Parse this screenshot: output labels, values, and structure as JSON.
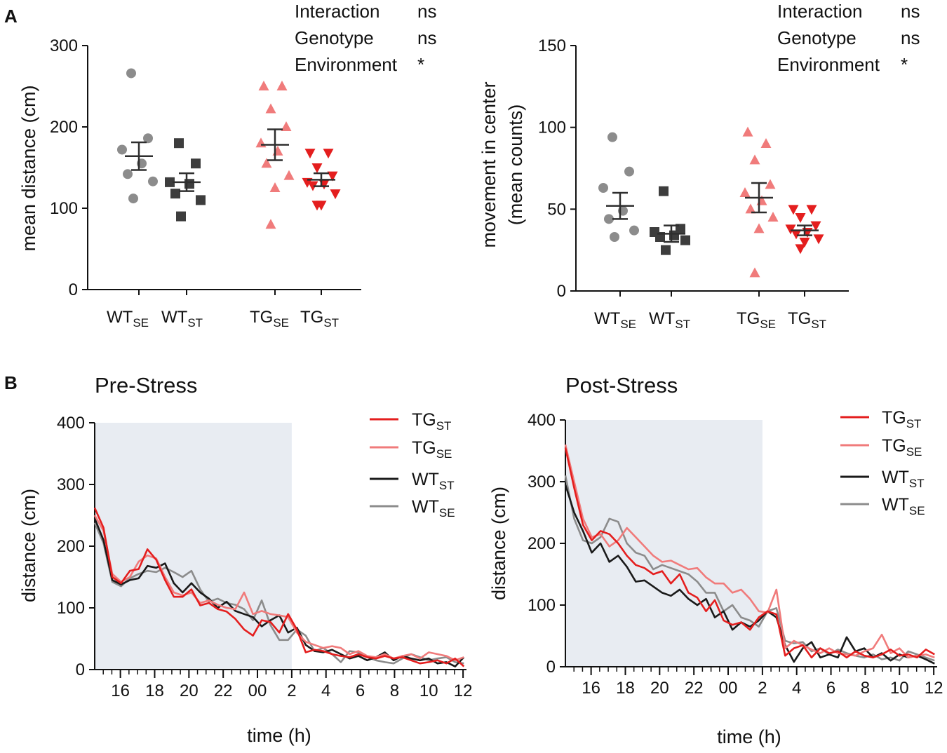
{
  "panel_labels": {
    "a": "A",
    "b": "B"
  },
  "colors": {
    "wt_se": "#8c8c8c",
    "wt_st": "#3d3d3d",
    "tg_se": "#f07b7b",
    "tg_st": "#e41e1e",
    "shade": "#e8ecf2",
    "sem": "#2e2e2e"
  },
  "group_labels": [
    {
      "main": "WT",
      "sub": "SE"
    },
    {
      "main": "WT",
      "sub": "ST"
    },
    {
      "main": "TG",
      "sub": "SE"
    },
    {
      "main": "TG",
      "sub": "ST"
    }
  ],
  "stats_left": [
    {
      "label": "Interaction",
      "value": "ns"
    },
    {
      "label": "Genotype",
      "value": "ns"
    },
    {
      "label": "Environment",
      "value": "*"
    }
  ],
  "stats_right": [
    {
      "label": "Interaction",
      "value": "ns"
    },
    {
      "label": "Genotype",
      "value": "ns"
    },
    {
      "label": "Environment",
      "value": "*"
    }
  ],
  "chart_data": [
    {
      "type": "scatter",
      "panel": "A-left",
      "ylabel": "mean distance (cm)",
      "ylim": [
        0,
        300
      ],
      "yticks": [
        0,
        100,
        200,
        300
      ],
      "groups": [
        {
          "name": "WT SE",
          "marker": "circle",
          "values": [
            266,
            186,
            172,
            155,
            142,
            133,
            112
          ],
          "mean": 164,
          "sem": 17
        },
        {
          "name": "WT ST",
          "marker": "square",
          "values": [
            180,
            155,
            132,
            130,
            118,
            110,
            90
          ],
          "mean": 132,
          "sem": 11
        },
        {
          "name": "TG SE",
          "marker": "triangle-up",
          "values": [
            250,
            250,
            222,
            200,
            180,
            170,
            155,
            140,
            125,
            80
          ],
          "mean": 178,
          "sem": 19
        },
        {
          "name": "TG ST",
          "marker": "triangle-down",
          "values": [
            168,
            168,
            150,
            140,
            132,
            130,
            128,
            118,
            104,
            104
          ],
          "mean": 135,
          "sem": 8
        }
      ]
    },
    {
      "type": "scatter",
      "panel": "A-right",
      "ylabel": "movement in center",
      "ylabel2": "(mean counts)",
      "ylim": [
        0,
        150
      ],
      "yticks": [
        0,
        50,
        100,
        150
      ],
      "groups": [
        {
          "name": "WT SE",
          "marker": "circle",
          "values": [
            94,
            73,
            63,
            49,
            44,
            37,
            33
          ],
          "mean": 52,
          "sem": 8
        },
        {
          "name": "WT ST",
          "marker": "square",
          "values": [
            61,
            38,
            36,
            34,
            33,
            31,
            25
          ],
          "mean": 35,
          "sem": 5
        },
        {
          "name": "TG SE",
          "marker": "triangle-up",
          "values": [
            97,
            90,
            80,
            65,
            60,
            55,
            50,
            45,
            38,
            11
          ],
          "mean": 57,
          "sem": 9
        },
        {
          "name": "TG ST",
          "marker": "triangle-down",
          "values": [
            50,
            50,
            45,
            40,
            38,
            36,
            35,
            32,
            30,
            26
          ],
          "mean": 37,
          "sem": 3
        }
      ]
    },
    {
      "type": "line",
      "panel": "B-left",
      "title": "Pre-Stress",
      "xlabel": "time (h)",
      "ylabel": "distance (cm)",
      "ylim": [
        0,
        400
      ],
      "yticks": [
        0,
        100,
        200,
        300,
        400
      ],
      "xlim": [
        14.5,
        36.2
      ],
      "xticks": [
        16,
        18,
        20,
        22,
        24,
        26,
        28,
        30,
        32,
        34,
        36
      ],
      "xtick_labels": [
        "16",
        "18",
        "20",
        "22",
        "00",
        "2",
        "4",
        "6",
        "8",
        "10",
        "12"
      ],
      "dark_phase": [
        14.5,
        26
      ],
      "series": [
        {
          "name": "TG ST",
          "label_main": "TG",
          "label_sub": "ST",
          "values": [
            262,
            230,
            150,
            140,
            160,
            163,
            195,
            178,
            145,
            118,
            118,
            130,
            104,
            108,
            98,
            94,
            82,
            65,
            55,
            80,
            77,
            60,
            90,
            65,
            28,
            32,
            30,
            25,
            22,
            20,
            25,
            20,
            18,
            22,
            18,
            20,
            15,
            10,
            12,
            15,
            10,
            18,
            5
          ]
        },
        {
          "name": "TG SE",
          "label_main": "TG",
          "label_sub": "SE",
          "values": [
            250,
            225,
            155,
            142,
            150,
            175,
            185,
            180,
            150,
            125,
            120,
            125,
            108,
            112,
            105,
            100,
            98,
            125,
            90,
            95,
            90,
            88,
            85,
            60,
            45,
            40,
            35,
            38,
            35,
            25,
            30,
            22,
            20,
            25,
            18,
            22,
            25,
            18,
            28,
            25,
            22,
            15,
            20
          ]
        },
        {
          "name": "WT ST",
          "label_main": "WT",
          "label_sub": "ST",
          "values": [
            245,
            210,
            145,
            138,
            145,
            148,
            168,
            165,
            172,
            140,
            125,
            140,
            125,
            115,
            100,
            110,
            95,
            90,
            85,
            70,
            80,
            88,
            60,
            68,
            40,
            30,
            28,
            32,
            25,
            18,
            22,
            15,
            20,
            28,
            15,
            22,
            18,
            15,
            18,
            10,
            12,
            5,
            20
          ]
        },
        {
          "name": "WT SE",
          "label_main": "WT",
          "label_sub": "SE",
          "values": [
            238,
            205,
            142,
            135,
            148,
            155,
            160,
            158,
            165,
            158,
            150,
            160,
            130,
            110,
            115,
            108,
            105,
            98,
            80,
            112,
            72,
            48,
            48,
            65,
            55,
            30,
            35,
            25,
            12,
            30,
            28,
            20,
            15,
            12,
            10,
            18,
            25,
            20,
            15,
            18,
            20,
            12,
            10
          ]
        }
      ]
    },
    {
      "type": "line",
      "panel": "B-right",
      "title": "Post-Stress",
      "xlabel": "time (h)",
      "ylabel": "distance (cm)",
      "ylim": [
        0,
        400
      ],
      "yticks": [
        0,
        100,
        200,
        300,
        400
      ],
      "xlim": [
        14.5,
        36.2
      ],
      "xticks": [
        16,
        18,
        20,
        22,
        24,
        26,
        28,
        30,
        32,
        34,
        36
      ],
      "xtick_labels": [
        "16",
        "18",
        "20",
        "22",
        "00",
        "2",
        "4",
        "6",
        "8",
        "10",
        "12"
      ],
      "dark_phase": [
        14.5,
        26
      ],
      "series": [
        {
          "name": "TG ST",
          "label_main": "TG",
          "label_sub": "ST",
          "values": [
            355,
            290,
            230,
            205,
            220,
            215,
            200,
            180,
            165,
            160,
            150,
            155,
            135,
            150,
            120,
            112,
            90,
            108,
            75,
            68,
            72,
            60,
            80,
            90,
            85,
            18,
            30,
            35,
            15,
            30,
            22,
            25,
            15,
            25,
            18,
            15,
            20,
            28,
            18,
            20,
            15,
            28,
            20
          ]
        },
        {
          "name": "TG SE",
          "label_main": "TG",
          "label_sub": "SE",
          "values": [
            360,
            300,
            240,
            210,
            215,
            195,
            205,
            225,
            210,
            195,
            180,
            170,
            172,
            165,
            158,
            160,
            145,
            135,
            135,
            120,
            125,
            110,
            90,
            88,
            125,
            30,
            42,
            35,
            28,
            22,
            30,
            22,
            20,
            18,
            25,
            30,
            52,
            22,
            30,
            15,
            18,
            20,
            15
          ]
        },
        {
          "name": "WT ST",
          "label_main": "WT",
          "label_sub": "ST",
          "values": [
            295,
            250,
            220,
            185,
            200,
            170,
            180,
            162,
            138,
            140,
            130,
            120,
            115,
            125,
            110,
            100,
            110,
            80,
            90,
            60,
            72,
            65,
            75,
            90,
            80,
            35,
            8,
            30,
            40,
            15,
            20,
            15,
            48,
            25,
            30,
            15,
            22,
            10,
            20,
            15,
            18,
            12,
            5
          ]
        },
        {
          "name": "WT SE",
          "label_main": "WT",
          "label_sub": "SE",
          "values": [
            310,
            240,
            205,
            200,
            210,
            240,
            235,
            200,
            185,
            180,
            158,
            165,
            160,
            155,
            150,
            138,
            120,
            120,
            90,
            100,
            80,
            75,
            65,
            90,
            95,
            42,
            38,
            40,
            25,
            30,
            20,
            28,
            22,
            18,
            15,
            20,
            12,
            15,
            10,
            25,
            20,
            15,
            10
          ]
        }
      ]
    }
  ]
}
